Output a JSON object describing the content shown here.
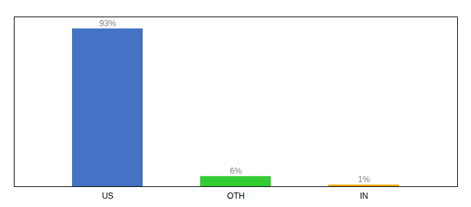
{
  "chart_data": {
    "type": "bar",
    "categories": [
      "US",
      "OTH",
      "IN"
    ],
    "values": [
      93,
      6,
      1
    ],
    "value_labels": [
      "93%",
      "6%",
      "1%"
    ],
    "colors": [
      "#4472c4",
      "#33cc33",
      "#f0a500"
    ],
    "ylim": [
      0,
      100
    ],
    "data_labels": true,
    "tick_labels": "x",
    "grid": false
  }
}
